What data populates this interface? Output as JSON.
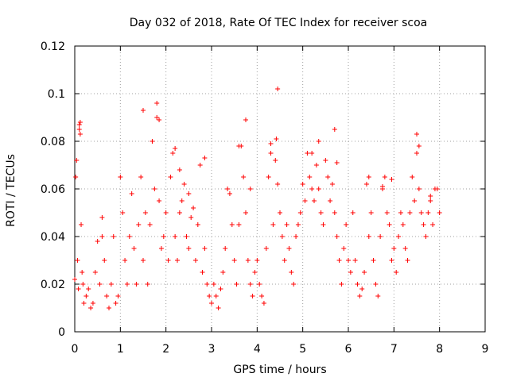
{
  "chart_data": {
    "type": "scatter",
    "title": "Day 032 of 2018, Rate Of TEC Index for receiver scoa",
    "xlabel": "GPS time / hours",
    "ylabel": "ROTI / TECUs",
    "xlim": [
      0,
      9
    ],
    "ylim": [
      0,
      0.12
    ],
    "x_ticks": [
      0,
      1,
      2,
      3,
      4,
      5,
      6,
      7,
      8,
      9
    ],
    "x_tick_labels": [
      "0",
      "1",
      "2",
      "3",
      "4",
      "5",
      "6",
      "7",
      "8",
      "9"
    ],
    "y_ticks": [
      0,
      0.02,
      0.04,
      0.06,
      0.08,
      0.1,
      0.12
    ],
    "y_tick_labels": [
      "0",
      "0.02",
      "0.04",
      "0.06",
      "0.08",
      "0.1",
      "0.12"
    ],
    "grid": true,
    "marker": "+",
    "series_color": "#ff0000",
    "series": [
      {
        "name": "ROTI",
        "x": [
          0.0,
          0.02,
          0.04,
          0.06,
          0.08,
          0.1,
          0.12,
          0.14,
          0.16,
          0.18,
          0.2,
          0.25,
          0.3,
          0.35,
          0.4,
          0.45,
          0.5,
          0.55,
          0.6,
          0.65,
          0.7,
          0.75,
          0.8,
          0.85,
          0.9,
          0.95,
          1.0,
          1.05,
          1.1,
          1.15,
          1.2,
          1.25,
          1.3,
          1.35,
          1.4,
          1.45,
          1.5,
          1.55,
          1.6,
          1.65,
          1.7,
          1.75,
          1.8,
          1.85,
          1.9,
          1.95,
          2.0,
          2.05,
          2.1,
          2.15,
          2.2,
          2.25,
          2.3,
          2.35,
          2.4,
          2.45,
          2.5,
          2.55,
          2.6,
          2.65,
          2.7,
          2.75,
          2.8,
          2.85,
          2.9,
          2.95,
          3.0,
          3.05,
          3.1,
          3.15,
          3.2,
          3.25,
          3.3,
          3.35,
          3.4,
          3.45,
          3.5,
          3.55,
          3.6,
          3.65,
          3.7,
          3.75,
          3.8,
          3.85,
          3.9,
          3.95,
          4.0,
          4.05,
          4.1,
          4.15,
          4.2,
          4.25,
          4.3,
          4.35,
          4.4,
          4.45,
          4.5,
          4.55,
          4.6,
          4.65,
          4.7,
          4.75,
          4.8,
          4.85,
          4.9,
          4.95,
          5.0,
          5.05,
          5.1,
          5.15,
          5.2,
          5.25,
          5.3,
          5.35,
          5.4,
          5.45,
          5.5,
          5.55,
          5.6,
          5.65,
          5.7,
          5.75,
          5.8,
          5.85,
          5.9,
          5.95,
          6.0,
          6.05,
          6.1,
          6.15,
          6.2,
          6.25,
          6.3,
          6.35,
          6.4,
          6.45,
          6.5,
          6.55,
          6.6,
          6.65,
          6.7,
          6.75,
          6.8,
          6.85,
          6.9,
          6.95,
          7.0,
          7.05,
          7.1,
          7.15,
          7.2,
          7.25,
          7.3,
          7.35,
          7.4,
          7.45,
          7.5,
          7.55,
          7.6,
          7.65,
          7.7,
          7.75,
          7.8,
          7.85,
          7.9,
          7.95,
          8.0,
          0.1,
          0.12,
          0.6,
          1.5,
          1.7,
          1.8,
          1.85,
          2.2,
          2.3,
          2.5,
          2.85,
          3.6,
          3.75,
          3.85,
          4.3,
          4.45,
          4.42,
          5.2,
          5.35,
          5.7,
          5.75,
          6.45,
          6.75,
          6.95,
          7.5,
          7.55,
          7.8
        ],
        "y": [
          0.022,
          0.065,
          0.072,
          0.03,
          0.018,
          0.085,
          0.088,
          0.045,
          0.025,
          0.02,
          0.012,
          0.015,
          0.018,
          0.01,
          0.012,
          0.025,
          0.038,
          0.02,
          0.048,
          0.03,
          0.015,
          0.01,
          0.02,
          0.04,
          0.012,
          0.015,
          0.065,
          0.05,
          0.03,
          0.02,
          0.04,
          0.058,
          0.035,
          0.02,
          0.045,
          0.065,
          0.03,
          0.05,
          0.02,
          0.045,
          0.08,
          0.06,
          0.09,
          0.055,
          0.035,
          0.04,
          0.05,
          0.03,
          0.065,
          0.075,
          0.04,
          0.03,
          0.05,
          0.055,
          0.062,
          0.04,
          0.035,
          0.048,
          0.052,
          0.03,
          0.045,
          0.07,
          0.025,
          0.035,
          0.02,
          0.015,
          0.012,
          0.02,
          0.015,
          0.01,
          0.018,
          0.025,
          0.035,
          0.06,
          0.058,
          0.045,
          0.03,
          0.02,
          0.045,
          0.078,
          0.065,
          0.05,
          0.03,
          0.02,
          0.015,
          0.025,
          0.03,
          0.02,
          0.015,
          0.012,
          0.035,
          0.065,
          0.075,
          0.045,
          0.072,
          0.062,
          0.05,
          0.04,
          0.03,
          0.045,
          0.035,
          0.025,
          0.02,
          0.04,
          0.045,
          0.05,
          0.062,
          0.055,
          0.075,
          0.065,
          0.06,
          0.055,
          0.07,
          0.06,
          0.05,
          0.045,
          0.072,
          0.065,
          0.055,
          0.062,
          0.05,
          0.04,
          0.03,
          0.02,
          0.035,
          0.045,
          0.03,
          0.025,
          0.05,
          0.03,
          0.02,
          0.015,
          0.018,
          0.025,
          0.062,
          0.04,
          0.05,
          0.03,
          0.02,
          0.015,
          0.04,
          0.06,
          0.065,
          0.05,
          0.045,
          0.03,
          0.035,
          0.025,
          0.04,
          0.05,
          0.045,
          0.035,
          0.03,
          0.05,
          0.065,
          0.055,
          0.075,
          0.06,
          0.05,
          0.045,
          0.04,
          0.05,
          0.055,
          0.045,
          0.06,
          0.06,
          0.05,
          0.087,
          0.083,
          0.04,
          0.093,
          0.08,
          0.096,
          0.089,
          0.077,
          0.068,
          0.058,
          0.073,
          0.078,
          0.089,
          0.06,
          0.079,
          0.102,
          0.081,
          0.075,
          0.08,
          0.085,
          0.071,
          0.065,
          0.061,
          0.064,
          0.083,
          0.078,
          0.057
        ]
      }
    ]
  }
}
